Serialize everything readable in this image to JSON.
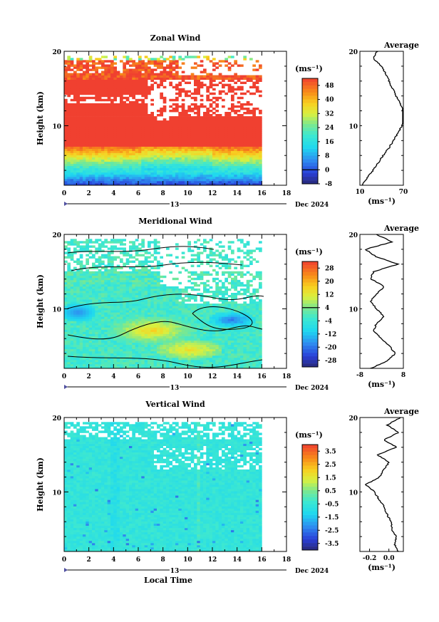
{
  "chart_data": [
    {
      "type": "heatmap",
      "title": "Zonal Wind",
      "ylabel": "Height (km)",
      "xlim": [
        0,
        18
      ],
      "ylim": [
        2,
        20
      ],
      "x_ticks": [
        "0",
        "2",
        "4",
        "6",
        "8",
        "10",
        "12",
        "14",
        "16",
        "18"
      ],
      "y_ticks": [
        "10",
        "20"
      ],
      "date_axis": {
        "day": "13",
        "month_year": "Dec 2024"
      },
      "colorbar": {
        "unit": "(ms⁻¹)",
        "ticks": [
          "48",
          "40",
          "32",
          "24",
          "16",
          "8",
          "0",
          "-8"
        ],
        "range": [
          -8,
          52
        ]
      },
      "profile": {
        "title": "Average",
        "xticks": [
          "10",
          "70"
        ],
        "xlabel": "(ms⁻¹)",
        "xlim": [
          10,
          70
        ],
        "heights": [
          2,
          3,
          4,
          5,
          6,
          7,
          8,
          9,
          10,
          11,
          12,
          13,
          14,
          15,
          16,
          17,
          18,
          19,
          20
        ],
        "values": [
          12,
          20,
          28,
          35,
          42,
          50,
          56,
          63,
          68,
          72,
          70,
          66,
          60,
          55,
          50,
          46,
          40,
          28,
          34
        ]
      }
    },
    {
      "type": "heatmap",
      "title": "Meridional Wind",
      "ylabel": "Height (km)",
      "xlim": [
        0,
        18
      ],
      "ylim": [
        2,
        20
      ],
      "x_ticks": [
        "0",
        "2",
        "4",
        "6",
        "8",
        "10",
        "12",
        "14",
        "16",
        "18"
      ],
      "y_ticks": [
        "10",
        "20"
      ],
      "date_axis": {
        "day": "13",
        "month_year": "Dec 2024"
      },
      "colorbar": {
        "unit": "(ms⁻¹)",
        "ticks": [
          "28",
          "20",
          "12",
          "4",
          "-4",
          "-12",
          "-20",
          "-28"
        ],
        "range": [
          -32,
          32
        ]
      },
      "profile": {
        "title": "Average",
        "xticks": [
          "-8",
          "8"
        ],
        "xlabel": "(ms⁻¹)",
        "xlim": [
          -8,
          8
        ],
        "heights": [
          2,
          3,
          4,
          5,
          6,
          7,
          8,
          9,
          10,
          11,
          12,
          13,
          14,
          15,
          16,
          17,
          18,
          19,
          20
        ],
        "values": [
          -4,
          2,
          5,
          3,
          0,
          -3,
          -2,
          1,
          -2,
          -4,
          -2,
          1,
          -4,
          -3,
          6,
          -2,
          -6,
          4,
          -2
        ]
      }
    },
    {
      "type": "heatmap",
      "title": "Vertical Wind",
      "xlabel": "Local Time",
      "ylabel": "Height (km)",
      "xlim": [
        0,
        18
      ],
      "ylim": [
        2,
        20
      ],
      "x_ticks": [
        "0",
        "2",
        "4",
        "6",
        "8",
        "10",
        "12",
        "14",
        "16",
        "18"
      ],
      "y_ticks": [
        "10",
        "20"
      ],
      "date_axis": {
        "day": "13",
        "month_year": "Dec 2024"
      },
      "colorbar": {
        "unit": "(ms⁻¹)",
        "ticks": [
          "3.5",
          "2.5",
          "1.5",
          "0.5",
          "-0.5",
          "-1.5",
          "-2.5",
          "-3.5"
        ],
        "range": [
          -4,
          4
        ]
      },
      "profile": {
        "title": "Average",
        "xticks": [
          "-0.2",
          "0.0"
        ],
        "xlabel": "(ms⁻¹)",
        "xlim": [
          -0.3,
          0.15
        ],
        "heights": [
          2,
          3,
          4,
          5,
          6,
          7,
          8,
          9,
          10,
          11,
          12,
          13,
          14,
          15,
          16,
          17,
          18,
          19,
          20
        ],
        "values": [
          0.1,
          0.06,
          0.08,
          0.03,
          0.02,
          -0.02,
          -0.05,
          -0.1,
          -0.15,
          -0.24,
          -0.1,
          -0.05,
          0.0,
          -0.12,
          0.08,
          -0.05,
          0.1,
          -0.02,
          0.12
        ]
      }
    }
  ]
}
